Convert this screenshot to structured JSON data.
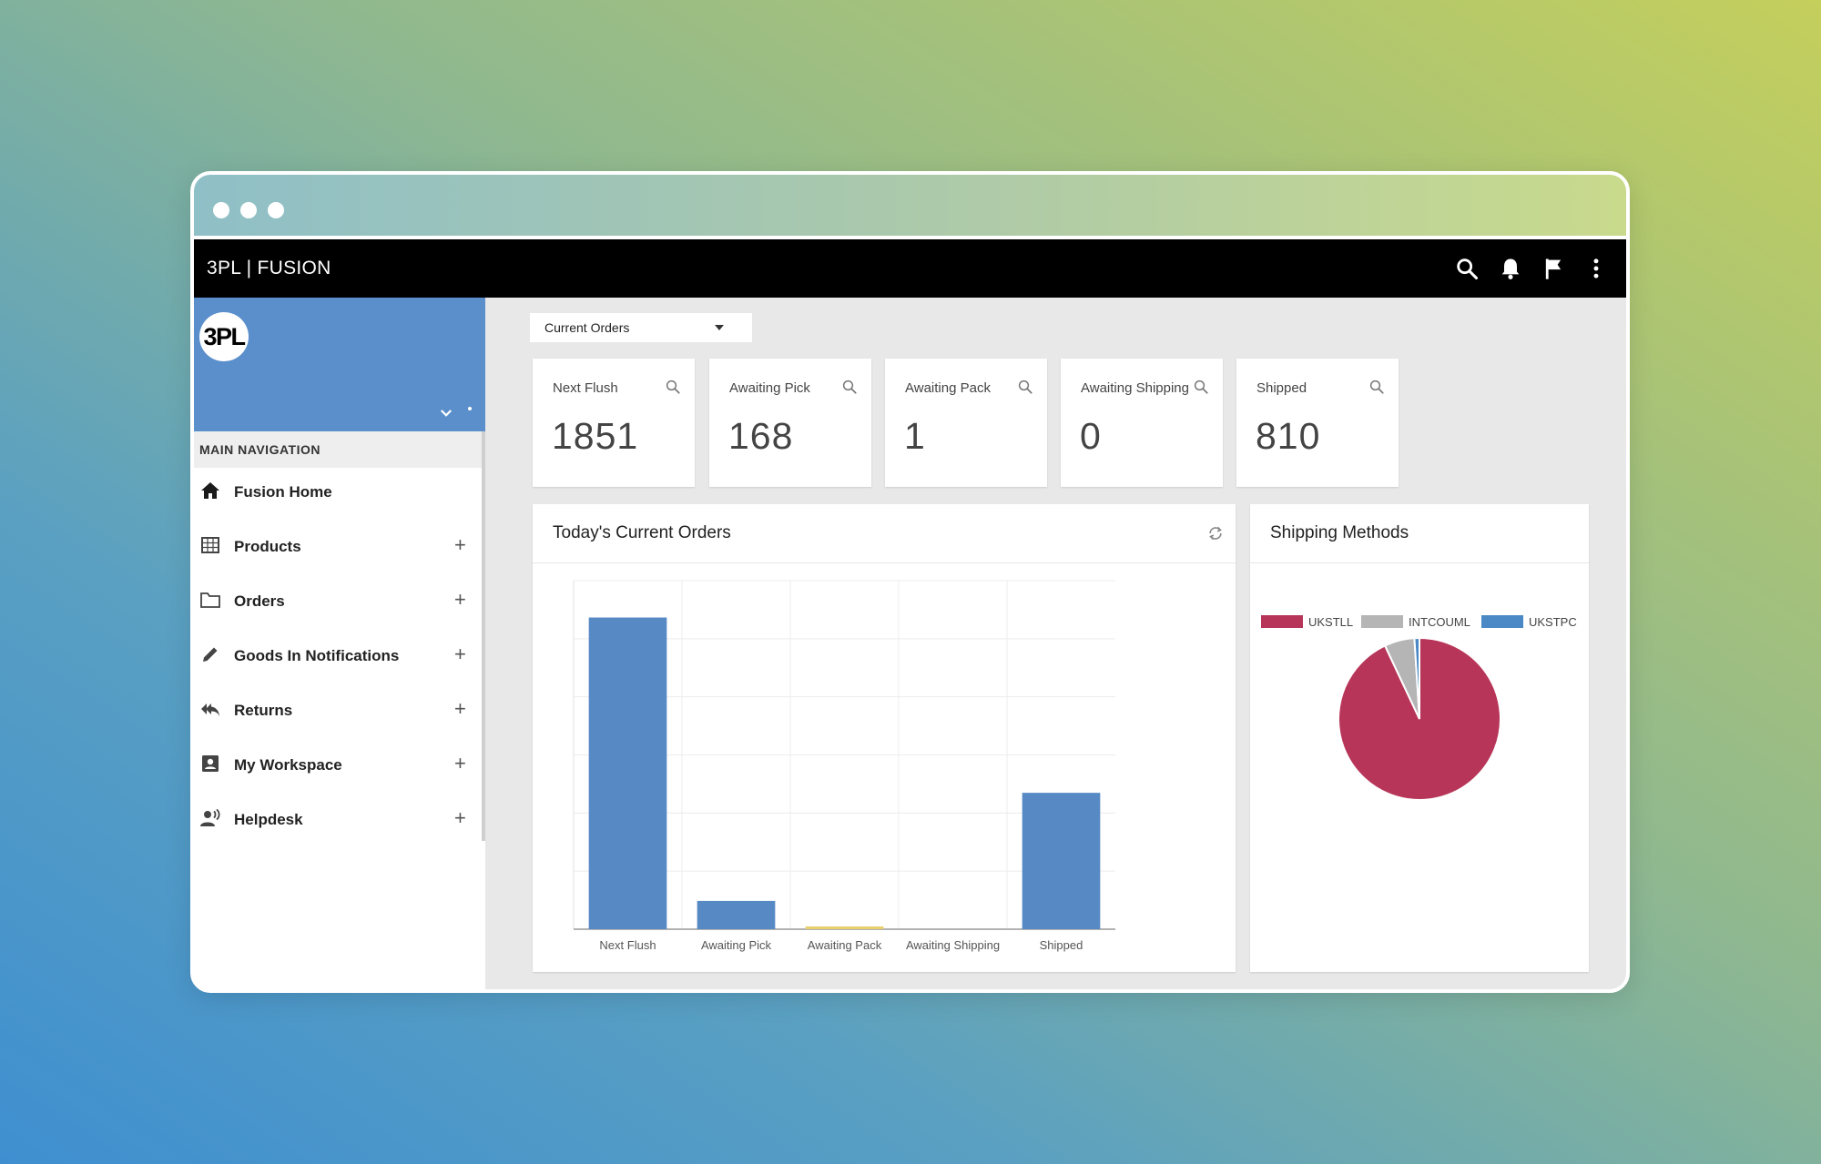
{
  "app": {
    "title": "3PL | FUSION",
    "logo_text": "3PL"
  },
  "toolbar_icons": [
    "search-icon",
    "bell-icon",
    "flag-icon",
    "more-vert-icon"
  ],
  "nav": {
    "heading": "MAIN NAVIGATION",
    "items": [
      {
        "label": "Fusion Home",
        "icon": "home-icon",
        "expandable": false
      },
      {
        "label": "Products",
        "icon": "grid-icon",
        "expandable": true
      },
      {
        "label": "Orders",
        "icon": "folder-icon",
        "expandable": true
      },
      {
        "label": "Goods In Notifications",
        "icon": "pencil-icon",
        "expandable": true
      },
      {
        "label": "Returns",
        "icon": "reply-all-icon",
        "expandable": true
      },
      {
        "label": "My Workspace",
        "icon": "person-card-icon",
        "expandable": true
      },
      {
        "label": "Helpdesk",
        "icon": "support-person-icon",
        "expandable": true
      }
    ],
    "plus_glyph": "+"
  },
  "filter": {
    "selected": "Current Orders"
  },
  "stats": [
    {
      "label": "Next Flush",
      "value": "1851"
    },
    {
      "label": "Awaiting Pick",
      "value": "168"
    },
    {
      "label": "Awaiting Pack",
      "value": "1"
    },
    {
      "label": "Awaiting Shipping",
      "value": "0"
    },
    {
      "label": "Shipped",
      "value": "810"
    }
  ],
  "orders_panel": {
    "title": "Today's Current Orders"
  },
  "shipping_panel": {
    "title": "Shipping Methods"
  },
  "colors": {
    "bar": "#578ac5",
    "bar_highlight": "#e9cf6b",
    "ukstll": "#b73558",
    "intcouml": "#b5b5b5",
    "ukstpc": "#4b89c6"
  },
  "chart_data": [
    {
      "type": "bar",
      "title": "Today's Current Orders",
      "categories": [
        "Next Flush",
        "Awaiting Pick",
        "Awaiting Pack",
        "Awaiting Shipping",
        "Shipped"
      ],
      "values": [
        1851,
        168,
        1,
        0,
        810
      ],
      "ylim": [
        0,
        2070
      ],
      "grid": true
    },
    {
      "type": "pie",
      "title": "Shipping Methods",
      "labels": [
        "UKSTLL",
        "INTCOUML",
        "UKSTPC"
      ],
      "values": [
        93,
        6,
        1
      ],
      "legend": "top"
    }
  ]
}
